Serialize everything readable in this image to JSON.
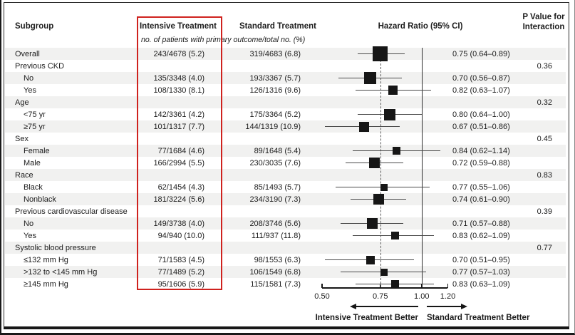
{
  "header": {
    "subgroup": "Subgroup",
    "intensive": "Intensive Treatment",
    "standard": "Standard Treatment",
    "hazard_ratio": "Hazard Ratio (95% CI)",
    "p_value_line1": "P Value for",
    "p_value_line2": "Interaction",
    "units_note": "no. of patients with primary outcome/total no. (%)"
  },
  "footer": {
    "left_arrow_label": "Intensive Treatment Better",
    "right_arrow_label": "Standard Treatment Better"
  },
  "colors": {
    "highlight_box": "#cf221e",
    "stripe": "#f1f1f0",
    "marker": "#161616"
  },
  "chart_data": {
    "type": "forest",
    "title": "",
    "x_scale": "log",
    "x_axis": {
      "ticks": [
        0.5,
        0.75,
        1.0,
        1.2
      ],
      "tick_labels": [
        "0.50",
        "0.75",
        "1.00",
        "1.20"
      ],
      "range": [
        0.5,
        1.2
      ],
      "solid_reference_line": 1.0,
      "dashed_reference_line": 0.75
    },
    "columns": {
      "intensive_header": "Intensive Treatment",
      "standard_header": "Standard Treatment",
      "value_format": "no. of patients with primary outcome/total no. (%)"
    },
    "rows": [
      {
        "label": "Overall",
        "indent": 0,
        "intensive": "243/4678 (5.2)",
        "standard": "319/4683 (6.8)",
        "hr": 0.75,
        "ci_low": 0.64,
        "ci_high": 0.89,
        "hr_label": "0.75 (0.64–0.89)",
        "weight": 21
      },
      {
        "label": "Previous CKD",
        "indent": 0,
        "p_interaction": "0.36"
      },
      {
        "label": "No",
        "indent": 1,
        "intensive": "135/3348 (4.0)",
        "standard": "193/3367 (5.7)",
        "hr": 0.7,
        "ci_low": 0.56,
        "ci_high": 0.87,
        "hr_label": "0.70 (0.56–0.87)",
        "weight": 17
      },
      {
        "label": "Yes",
        "indent": 1,
        "intensive": "108/1330 (8.1)",
        "standard": "126/1316 (9.6)",
        "hr": 0.82,
        "ci_low": 0.63,
        "ci_high": 1.07,
        "hr_label": "0.82 (0.63–1.07)",
        "weight": 13
      },
      {
        "label": "Age",
        "indent": 0,
        "p_interaction": "0.32"
      },
      {
        "label": "<75 yr",
        "indent": 1,
        "intensive": "142/3361 (4.2)",
        "standard": "175/3364 (5.2)",
        "hr": 0.8,
        "ci_low": 0.64,
        "ci_high": 1.0,
        "hr_label": "0.80 (0.64–1.00)",
        "weight": 16
      },
      {
        "label": "≥75 yr",
        "indent": 1,
        "intensive": "101/1317 (7.7)",
        "standard": "144/1319 (10.9)",
        "hr": 0.67,
        "ci_low": 0.51,
        "ci_high": 0.86,
        "hr_label": "0.67 (0.51–0.86)",
        "weight": 14
      },
      {
        "label": "Sex",
        "indent": 0,
        "p_interaction": "0.45"
      },
      {
        "label": "Female",
        "indent": 1,
        "intensive": "77/1684 (4.6)",
        "standard": "89/1648 (5.4)",
        "hr": 0.84,
        "ci_low": 0.62,
        "ci_high": 1.14,
        "hr_label": "0.84 (0.62–1.14)",
        "weight": 11
      },
      {
        "label": "Male",
        "indent": 1,
        "intensive": "166/2994 (5.5)",
        "standard": "230/3035 (7.6)",
        "hr": 0.72,
        "ci_low": 0.59,
        "ci_high": 0.88,
        "hr_label": "0.72 (0.59–0.88)",
        "weight": 15
      },
      {
        "label": "Race",
        "indent": 0,
        "p_interaction": "0.83"
      },
      {
        "label": "Black",
        "indent": 1,
        "intensive": "62/1454 (4.3)",
        "standard": "85/1493 (5.7)",
        "hr": 0.77,
        "ci_low": 0.55,
        "ci_high": 1.06,
        "hr_label": "0.77 (0.55–1.06)",
        "weight": 10
      },
      {
        "label": "Nonblack",
        "indent": 1,
        "intensive": "181/3224 (5.6)",
        "standard": "234/3190 (7.3)",
        "hr": 0.74,
        "ci_low": 0.61,
        "ci_high": 0.9,
        "hr_label": "0.74 (0.61–0.90)",
        "weight": 15
      },
      {
        "label": "Previous cardiovascular disease",
        "indent": 0,
        "p_interaction": "0.39"
      },
      {
        "label": "No",
        "indent": 1,
        "intensive": "149/3738 (4.0)",
        "standard": "208/3746 (5.6)",
        "hr": 0.71,
        "ci_low": 0.57,
        "ci_high": 0.88,
        "hr_label": "0.71 (0.57–0.88)",
        "weight": 15
      },
      {
        "label": "Yes",
        "indent": 1,
        "intensive": "94/940 (10.0)",
        "standard": "111/937 (11.8)",
        "hr": 0.83,
        "ci_low": 0.62,
        "ci_high": 1.09,
        "hr_label": "0.83 (0.62–1.09)",
        "weight": 11
      },
      {
        "label": "Systolic blood pressure",
        "indent": 0,
        "p_interaction": "0.77"
      },
      {
        "label": "≤132 mm Hg",
        "indent": 1,
        "intensive": "71/1583 (4.5)",
        "standard": "98/1553 (6.3)",
        "hr": 0.7,
        "ci_low": 0.51,
        "ci_high": 0.95,
        "hr_label": "0.70 (0.51–0.95)",
        "weight": 12
      },
      {
        "label": ">132 to <145 mm Hg",
        "indent": 1,
        "intensive": "77/1489 (5.2)",
        "standard": "106/1549 (6.8)",
        "hr": 0.77,
        "ci_low": 0.57,
        "ci_high": 1.03,
        "hr_label": "0.77 (0.57–1.03)",
        "weight": 10
      },
      {
        "label": "≥145 mm Hg",
        "indent": 1,
        "intensive": "95/1606 (5.9)",
        "standard": "115/1581 (7.3)",
        "hr": 0.83,
        "ci_low": 0.63,
        "ci_high": 1.09,
        "hr_label": "0.83 (0.63–1.09)",
        "weight": 11
      }
    ],
    "footer_labels": [
      "Intensive Treatment Better",
      "Standard Treatment Better"
    ]
  }
}
